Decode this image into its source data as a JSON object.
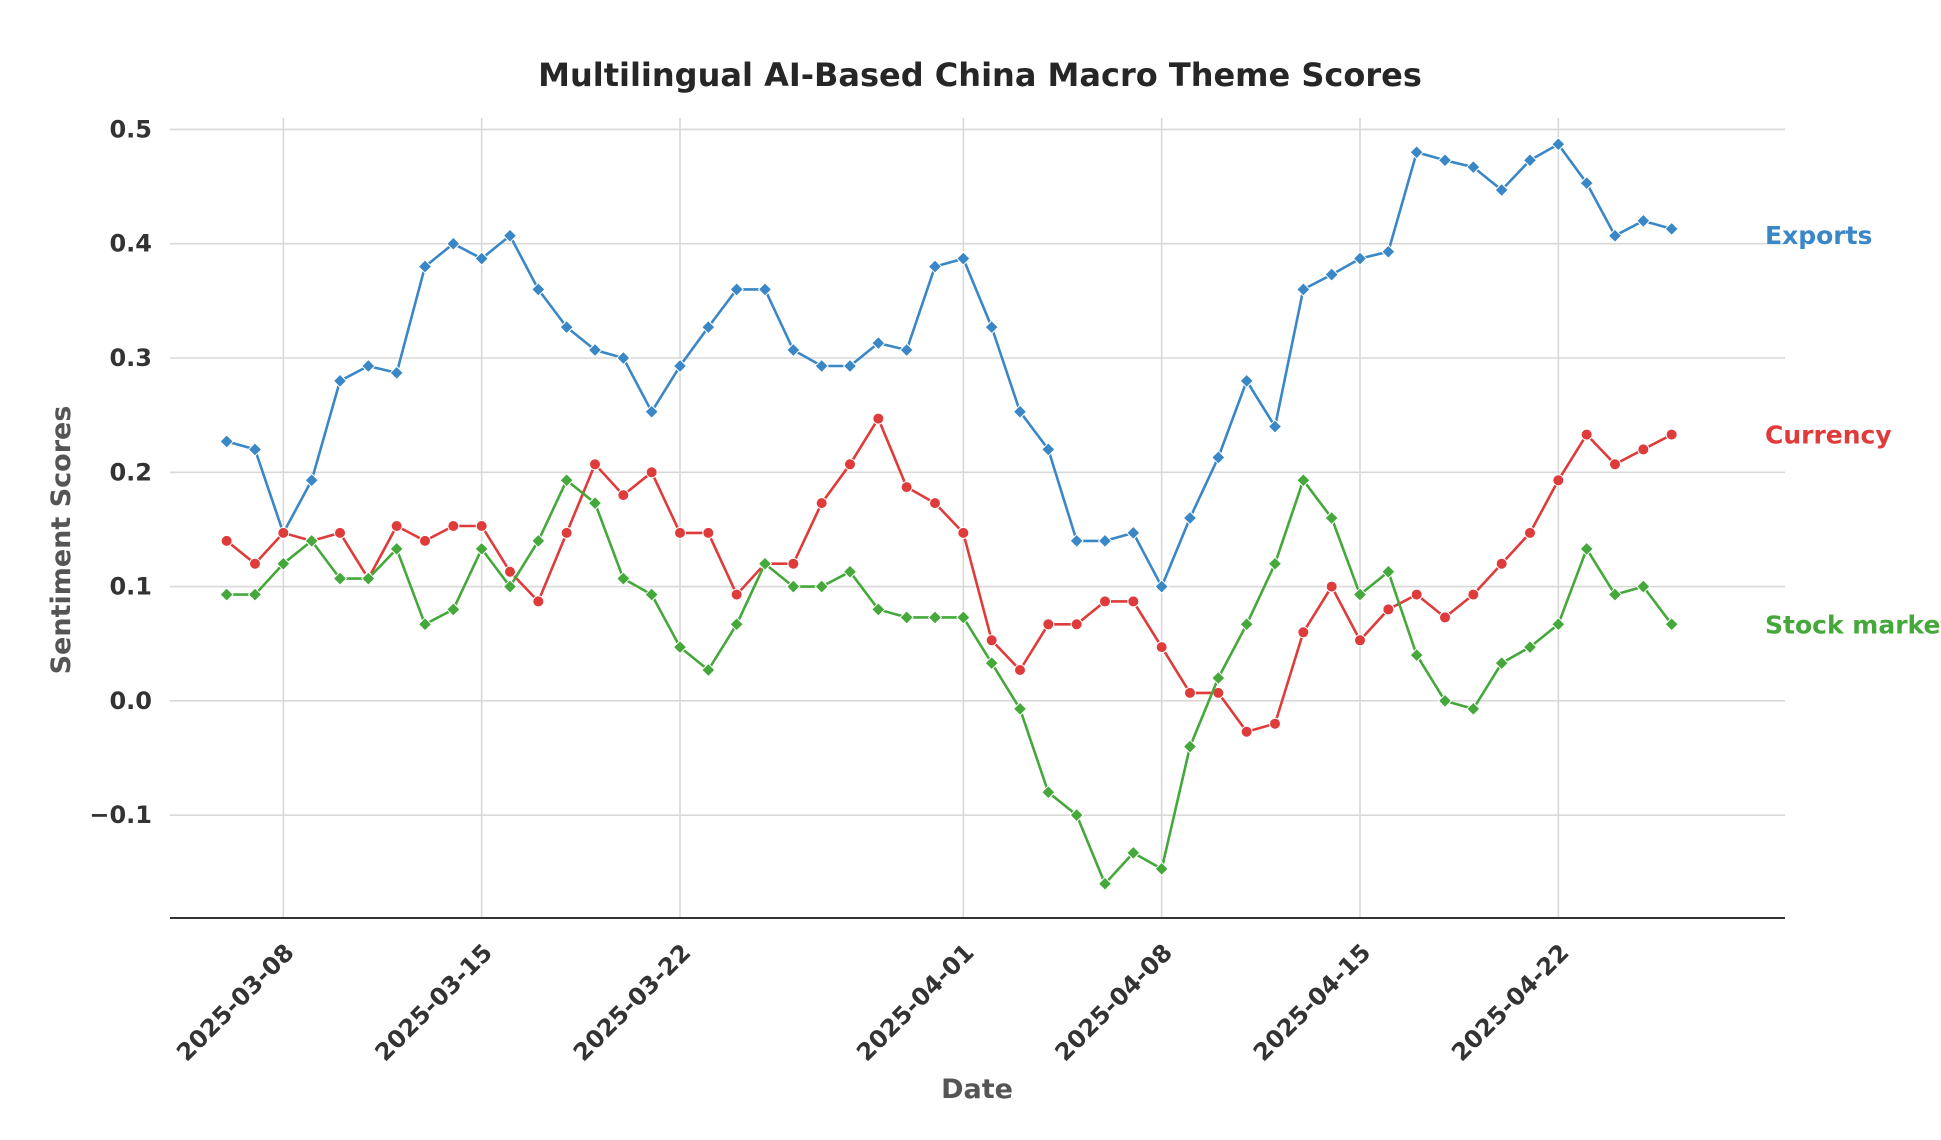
{
  "chart_data": {
    "type": "line",
    "title": "Multilingual AI-Based China Macro Theme Scores",
    "xlabel": "Date",
    "ylabel": "Sentiment Scores",
    "ylim": [
      -0.19,
      0.51
    ],
    "yticks": [
      -0.1,
      0.0,
      0.1,
      0.2,
      0.3,
      0.4,
      0.5
    ],
    "ytick_labels": [
      "−0.1",
      "0.0",
      "0.1",
      "0.2",
      "0.3",
      "0.4",
      "0.5"
    ],
    "xlim": [
      "2025-03-04",
      "2025-04-30"
    ],
    "xticks": [
      "2025-03-08",
      "2025-03-15",
      "2025-03-22",
      "2025-04-01",
      "2025-04-08",
      "2025-04-15",
      "2025-04-22"
    ],
    "grid": true,
    "legend": "inline labels at right end of each series",
    "x": [
      "2025-03-06",
      "2025-03-07",
      "2025-03-08",
      "2025-03-09",
      "2025-03-10",
      "2025-03-11",
      "2025-03-12",
      "2025-03-13",
      "2025-03-14",
      "2025-03-15",
      "2025-03-16",
      "2025-03-17",
      "2025-03-18",
      "2025-03-19",
      "2025-03-20",
      "2025-03-21",
      "2025-03-22",
      "2025-03-23",
      "2025-03-24",
      "2025-03-25",
      "2025-03-26",
      "2025-03-27",
      "2025-03-28",
      "2025-03-29",
      "2025-03-30",
      "2025-03-31",
      "2025-04-01",
      "2025-04-02",
      "2025-04-03",
      "2025-04-04",
      "2025-04-05",
      "2025-04-06",
      "2025-04-07",
      "2025-04-08",
      "2025-04-09",
      "2025-04-10",
      "2025-04-11",
      "2025-04-12",
      "2025-04-13",
      "2025-04-14",
      "2025-04-15",
      "2025-04-16",
      "2025-04-17",
      "2025-04-18",
      "2025-04-19",
      "2025-04-20",
      "2025-04-21",
      "2025-04-22",
      "2025-04-23",
      "2025-04-24",
      "2025-04-25",
      "2025-04-26",
      "2025-04-27",
      "2025-04-28"
    ],
    "series": [
      {
        "name": "Exports",
        "color": "#3a87c8",
        "marker": "diamond",
        "values": [
          0.227,
          0.22,
          0.147,
          0.193,
          0.28,
          0.293,
          0.287,
          0.38,
          0.4,
          0.387,
          0.407,
          0.36,
          0.327,
          0.307,
          0.3,
          0.253,
          0.293,
          0.327,
          0.36,
          0.36,
          0.307,
          0.293,
          0.293,
          0.313,
          0.307,
          0.38,
          0.387,
          0.327,
          0.253,
          0.22,
          0.14,
          0.14,
          0.147,
          0.1,
          0.16,
          0.213,
          0.28,
          0.24,
          0.36,
          0.373,
          0.387,
          0.393,
          0.48,
          0.473,
          0.467,
          0.447,
          0.473,
          0.487,
          0.453,
          0.407,
          0.42,
          0.413,
          null,
          null
        ]
      },
      {
        "name": "Currency",
        "color": "#e03b3b",
        "marker": "circle",
        "values": [
          0.14,
          0.12,
          0.147,
          0.14,
          0.147,
          0.107,
          0.153,
          0.14,
          0.153,
          0.153,
          0.113,
          0.087,
          0.147,
          0.207,
          0.18,
          0.2,
          0.147,
          0.147,
          0.093,
          0.12,
          0.12,
          0.173,
          0.207,
          0.247,
          0.187,
          0.173,
          0.147,
          0.053,
          0.027,
          0.067,
          0.067,
          0.087,
          0.087,
          0.047,
          0.007,
          0.007,
          -0.027,
          -0.02,
          0.06,
          0.1,
          0.053,
          0.08,
          0.093,
          0.073,
          0.093,
          0.12,
          0.147,
          0.193,
          0.233,
          0.207,
          0.22,
          0.233,
          null,
          null
        ]
      },
      {
        "name": "Stock market",
        "color": "#44a83a",
        "marker": "diamond",
        "values": [
          0.093,
          0.093,
          0.12,
          0.14,
          0.107,
          0.107,
          0.133,
          0.067,
          0.08,
          0.133,
          0.1,
          0.14,
          0.193,
          0.173,
          0.107,
          0.093,
          0.047,
          0.027,
          0.067,
          0.12,
          0.1,
          0.1,
          0.113,
          0.08,
          0.073,
          0.073,
          0.073,
          0.033,
          -0.007,
          -0.08,
          -0.1,
          -0.16,
          -0.133,
          -0.147,
          -0.04,
          0.02,
          0.067,
          0.12,
          0.193,
          0.16,
          0.093,
          0.113,
          0.04,
          0.0,
          -0.007,
          0.033,
          0.047,
          0.067,
          0.133,
          0.093,
          0.1,
          0.067,
          null,
          null
        ]
      }
    ]
  }
}
